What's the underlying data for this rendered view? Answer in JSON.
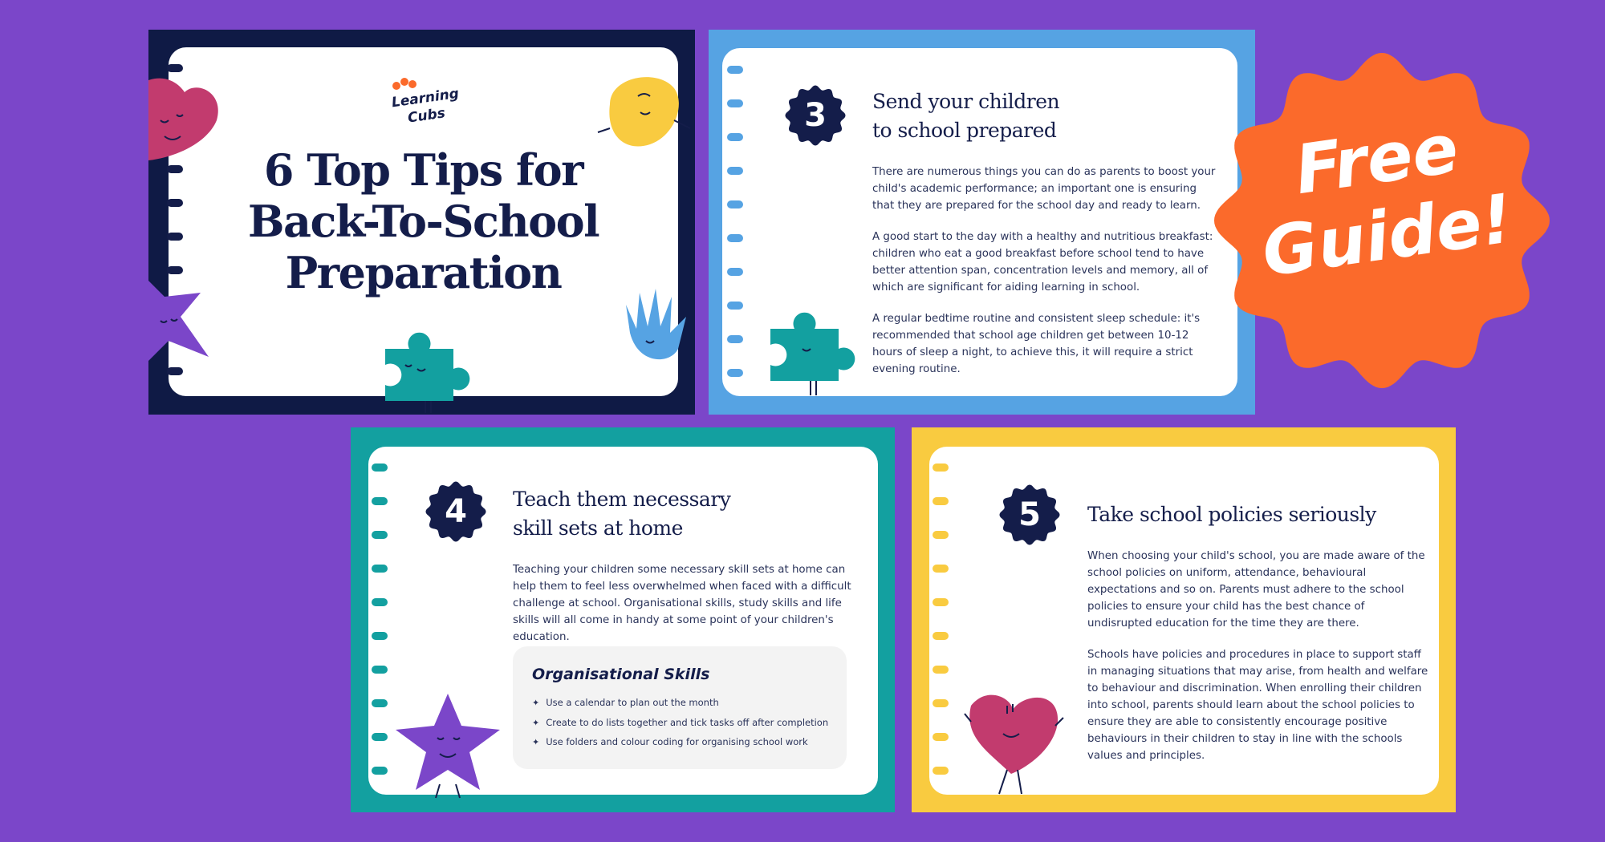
{
  "colors": {
    "background": "#7b46c9",
    "card1": "#0f1a45",
    "card3": "#56a3e3",
    "card4": "#13a0a0",
    "card5": "#f9cb40",
    "badge": "#fb6a2b",
    "navy": "#141d4a"
  },
  "cover": {
    "logo": "Learning Cubs",
    "title_lines": [
      "6 Top Tips for",
      "Back-To-School",
      "Preparation"
    ]
  },
  "tip3": {
    "number": "3",
    "title_lines": [
      "Send your children",
      "to school prepared"
    ],
    "paragraphs": [
      "There are numerous things you can do as parents to boost your child's academic performance; an important one is ensuring that they are prepared for the school day and ready to learn.",
      "A good start to the day with a healthy and nutritious breakfast: children who eat a good breakfast before school tend to have better attention span, concentration levels and memory, all of which are significant for aiding learning in school.",
      "A regular bedtime routine and consistent sleep schedule: it's recommended that school age children get between 10-12 hours of sleep a night, to achieve this, it will require a strict evening routine."
    ]
  },
  "tip4": {
    "number": "4",
    "title_lines": [
      "Teach them necessary",
      "skill sets at home"
    ],
    "paragraphs": [
      "Teaching your children some necessary skill sets at home can help them to feel less overwhelmed when faced with a difficult challenge at school. Organisational skills, study skills and life skills will all come in handy at some point of your children's education."
    ],
    "box_title": "Organisational Skills",
    "box_items": [
      "Use a calendar to plan out the month",
      "Create to do lists together and tick tasks off after completion",
      "Use folders and colour coding for organising school work"
    ]
  },
  "tip5": {
    "number": "5",
    "title": "Take school policies seriously",
    "paragraphs": [
      "When choosing your child's school, you are made aware of the school policies on uniform, attendance, behavioural expectations and so on. Parents must adhere to the school policies to ensure your child has the best chance of undisrupted education for the time they are there.",
      "Schools have policies and procedures in place to support staff in managing situations that may arise, from health and welfare to behaviour and discrimination. When enrolling their children into school, parents should learn about the school policies to ensure they are able to consistently encourage positive behaviours in their children to stay in line with the schools values and principles."
    ]
  },
  "badge": {
    "lines": [
      "Free",
      "Guide!"
    ]
  },
  "icons": [
    "heart-mascot",
    "star-mascot",
    "puzzle-mascot",
    "hand-mascot",
    "blob-mascot",
    "sparkle-bullet"
  ]
}
